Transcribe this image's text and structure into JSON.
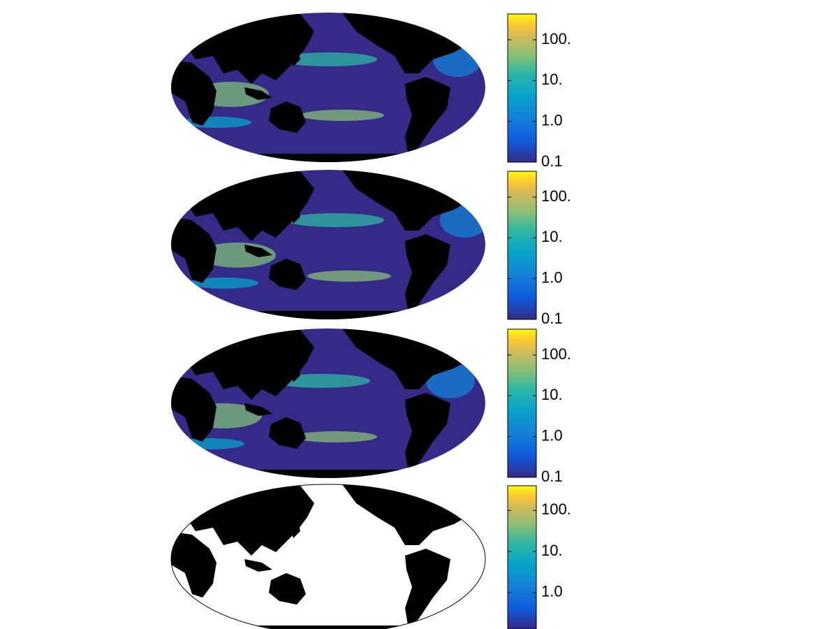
{
  "panels": [
    {
      "ocean_color": "#352a87",
      "colorbar": {
        "scale": "log",
        "lim": [
          0.1,
          430
        ],
        "ticks": [
          0.1,
          {
            "value": 1,
            "label": "1.0"
          },
          {
            "value": 10,
            "label": "10."
          },
          {
            "value": 100,
            "label": "100."
          }
        ]
      }
    },
    {
      "ocean_color": "#352a87",
      "colorbar": {
        "scale": "log",
        "lim": [
          0.1,
          430
        ],
        "ticks": [
          0.1,
          {
            "value": 1,
            "label": "1.0"
          },
          {
            "value": 10,
            "label": "10."
          },
          {
            "value": 100,
            "label": "100."
          }
        ]
      }
    },
    {
      "ocean_color": "#352a87",
      "colorbar": {
        "scale": "log",
        "lim": [
          0.1,
          430
        ],
        "ticks": [
          0.1,
          {
            "value": 1,
            "label": "1.0"
          },
          {
            "value": 10,
            "label": "10."
          },
          {
            "value": 100,
            "label": "100."
          }
        ]
      }
    },
    {
      "ocean_color": "#ffffff",
      "colorbar": {
        "scale": "log",
        "lim": [
          0.13,
          400
        ],
        "ticks": [
          {
            "value": 1,
            "label": "1.0"
          },
          {
            "value": 10,
            "label": "10."
          },
          {
            "value": 100,
            "label": "100."
          }
        ]
      }
    }
  ]
}
